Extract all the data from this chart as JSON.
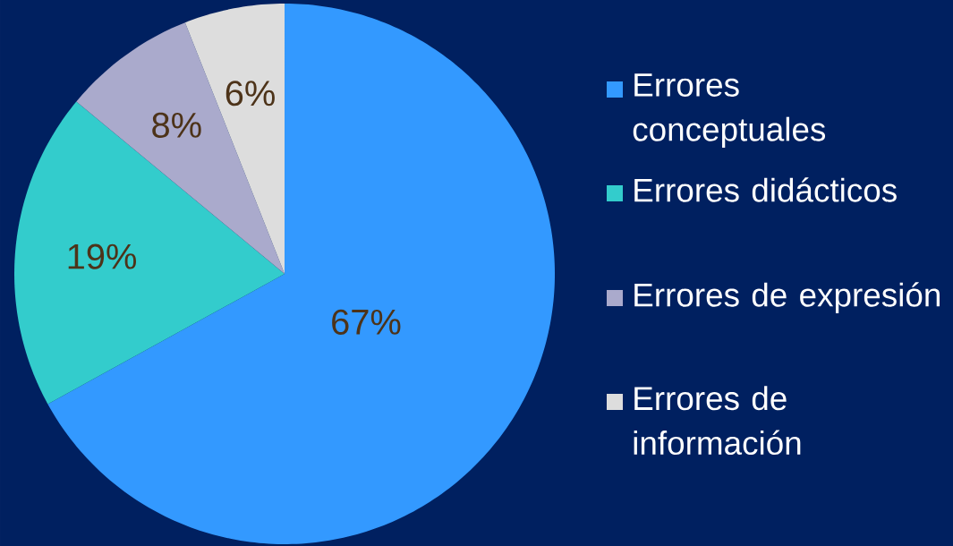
{
  "chart_data": {
    "type": "pie",
    "categories": [
      "Errores conceptuales",
      "Errores didácticos",
      "Errores de expresión",
      "Errores de información"
    ],
    "values": [
      67,
      19,
      8,
      6
    ],
    "colors": [
      "#3399ff",
      "#33cccc",
      "#aaaacc",
      "#dddddd"
    ],
    "value_labels": [
      "67%",
      "19%",
      "8%",
      "6%"
    ],
    "legend": "right"
  }
}
